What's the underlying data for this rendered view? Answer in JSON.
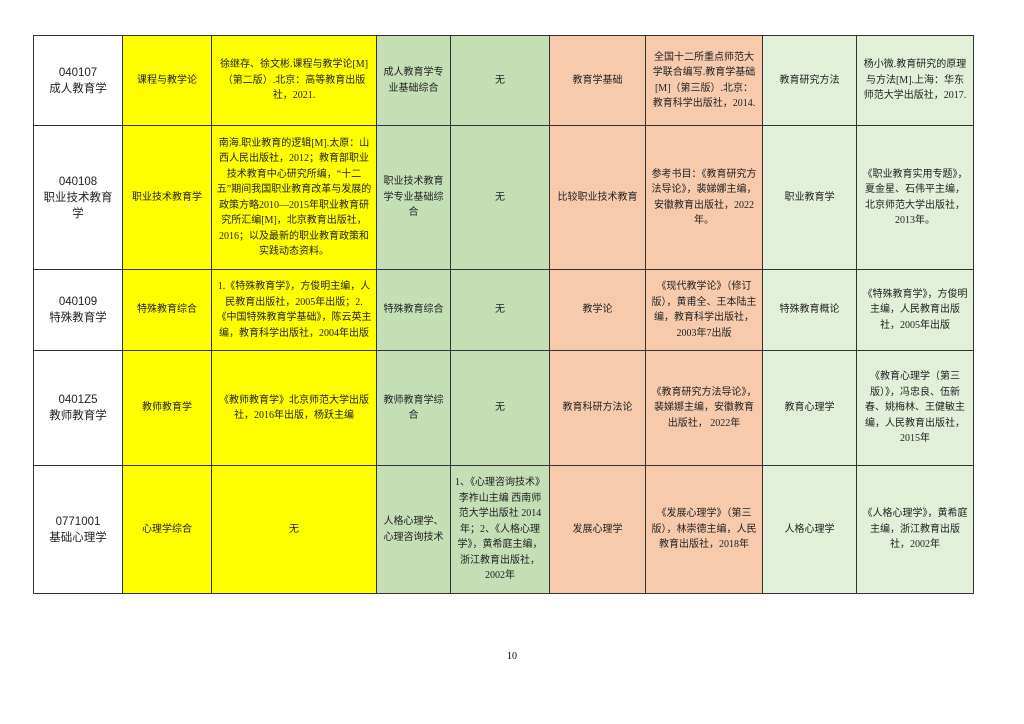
{
  "table": {
    "rows": [
      {
        "code": "040107",
        "major": "成人教育学",
        "cells": [
          "课程与教学论",
          "徐继存、徐文彬.课程与教学论[M]（第二版）.北京：高等教育出版社，2021.",
          "成人教育学专业基础综合",
          "无",
          "教育学基础",
          "全国十二所重点师范大学联合编写.教育学基础[M]（第三版）.北京：教育科学出版社，2014.",
          "教育研究方法",
          "杨小微.教育研究的原理与方法[M].上海：华东师范大学出版社，2017."
        ]
      },
      {
        "code": "040108",
        "major": "职业技术教育学",
        "cells": [
          "职业技术教育学",
          "南海.职业教育的逻辑[M].太原：山西人民出版社，2012；教育部职业技术教育中心研究所编，“十二五”期间我国职业教育改革与发展的政策方略2010—2015年职业教育研究所汇编[M]，北京教育出版社，2016；以及最新的职业教育政策和实践动态资料。",
          "职业技术教育学专业基础综合",
          "无",
          "比较职业技术教育",
          "参考书目：《教育研究方法导论》，裴娣娜主编，安徽教育出版社，2022年。",
          "职业教育学",
          "《职业教育实用专题》，夏金星、石伟平主编，北京师范大学出版社，2013年。"
        ]
      },
      {
        "code": "040109",
        "major": "特殊教育学",
        "cells": [
          "特殊教育综合",
          "1.《特殊教育学》，方俊明主编，人民教育出版社，2005年出版；2.《中国特殊教育学基础》，陈云英主编，教育科学出版社，2004年出版",
          "特殊教育综合",
          "无",
          "教学论",
          "《现代教学论》（修订版），黄甫全、王本陆主编，教育科学出版社， 2003年7出版",
          "特殊教育概论",
          "《特殊教育学》，方俊明主编，人民教育出版社，2005年出版"
        ]
      },
      {
        "code": "0401Z5",
        "major": "教师教育学",
        "cells": [
          "教师教育学",
          "《教师教育学》北京师范大学出版社，2016年出版，杨跃主编",
          "教师教育学综合",
          "无",
          "教育科研方法论",
          "《教育研究方法导论》，裴娣娜主编，安徽教育出版社， 2022年",
          "教育心理学",
          "《教育心理学（第三版）》，冯忠良、伍新春、姚梅林、王健敏主编，人民教育出版社，2015年"
        ]
      },
      {
        "code": "0771001",
        "major": "基础心理学",
        "cells": [
          "心理学综合",
          "无",
          "人格心理学、心理咨询技术",
          "1、《心理咨询技术》李祚山主编 西南师范大学出版社 2014年；2、《人格心理学》，黄希庭主编，浙江教育出版社，2002年",
          "发展心理学",
          "《发展心理学》（第三版），林崇德主编，人民教育出版社，2018年",
          "人格心理学",
          "《人格心理学》，黄希庭主编，浙江教育出版社，2002年"
        ]
      }
    ]
  },
  "page_number": "10",
  "colors": {
    "yellow": "#ffff00",
    "green": "#c5dfb4",
    "peach": "#f7caac",
    "light_green": "#e2efd9"
  }
}
